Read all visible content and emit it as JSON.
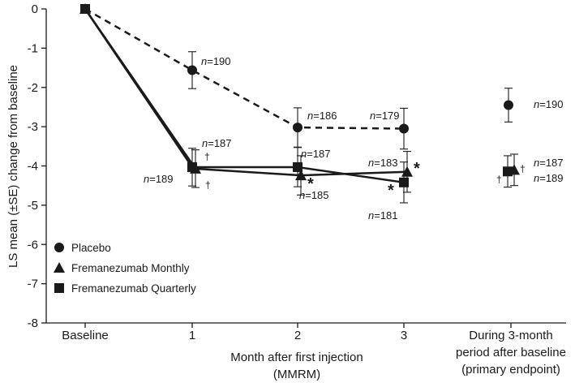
{
  "chart_data": {
    "type": "line",
    "ylabel": "LS mean (±SE) change from baseline",
    "xlabel": "Month after first injection",
    "xlabel_sub": "(MMRM)",
    "ylim": [
      -8,
      0
    ],
    "yticks": [
      "0",
      "-1",
      "-2",
      "-3",
      "-4",
      "-5",
      "-6",
      "-7",
      "-8"
    ],
    "categories": [
      "Baseline",
      "1",
      "2",
      "3"
    ],
    "endpoint_label": [
      "During 3-month",
      "period after baseline",
      "(primary endpoint)"
    ],
    "series": [
      {
        "name": "Placebo",
        "marker": "circle",
        "line": "dashed",
        "values": [
          0,
          -1.56,
          -3.02,
          -3.05
        ],
        "se": [
          0,
          0.47,
          0.5,
          0.52
        ],
        "n": [
          null,
          "n=190",
          "n=186",
          "n=179"
        ],
        "endpoint": {
          "value": -2.45,
          "se": 0.43,
          "n": "n=190"
        }
      },
      {
        "name": "Fremanezumab Monthly",
        "marker": "triangle",
        "line": "solid",
        "values": [
          0,
          -4.07,
          -4.24,
          -4.15
        ],
        "se": [
          0,
          0.48,
          0.5,
          0.52
        ],
        "n": [
          null,
          "n=187",
          "n=185",
          "n=183"
        ],
        "endpoint": {
          "value": -4.1,
          "se": 0.4,
          "n": "n=187"
        }
      },
      {
        "name": "Fremanezumab Quarterly",
        "marker": "square",
        "line": "solid",
        "values": [
          0,
          -4.03,
          -4.03,
          -4.42
        ],
        "se": [
          0,
          0.48,
          0.5,
          0.52
        ],
        "n": [
          null,
          "n=189",
          "n=187",
          "n=181"
        ],
        "endpoint": {
          "value": -4.14,
          "se": 0.4,
          "n": "n=189"
        }
      }
    ],
    "annotations": {
      "dagger": "†",
      "asterisk": "*"
    },
    "legend_position": "bottom-left",
    "grid": false
  }
}
